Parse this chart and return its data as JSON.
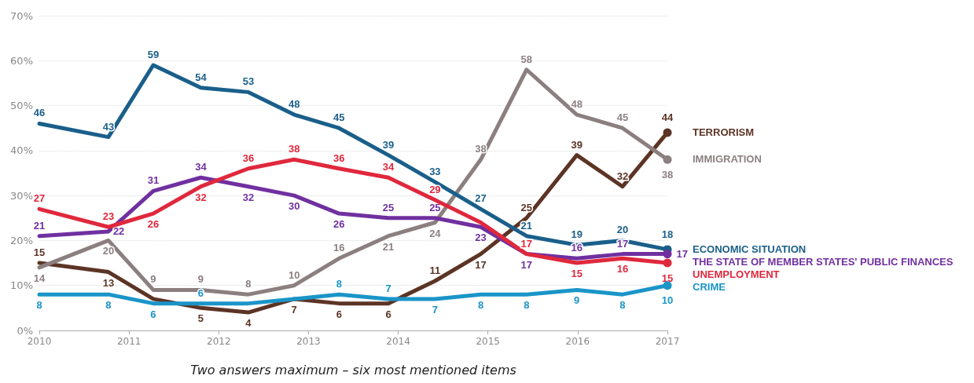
{
  "chart_data": {
    "type": "line",
    "xlabel": "Two answers maximum – six most mentioned items",
    "x": [
      2010,
      2010.77,
      2011.27,
      2011.8,
      2012.33,
      2012.84,
      2013.34,
      2013.89,
      2014.41,
      2014.92,
      2015.43,
      2015.99,
      2016.5,
      2017
    ],
    "xlim": [
      2010,
      2017
    ],
    "xticks": [
      2010,
      2011,
      2012,
      2013,
      2014,
      2015,
      2016,
      2017
    ],
    "ylim": [
      0,
      70
    ],
    "yticks": [
      {
        "value": 0,
        "label": "0%"
      },
      {
        "value": 10,
        "label": "10%"
      },
      {
        "value": 20,
        "label": "20%"
      },
      {
        "value": 30,
        "label": "30%"
      },
      {
        "value": 40,
        "label": "40%"
      },
      {
        "value": 50,
        "label": "50%"
      },
      {
        "value": 60,
        "label": "60%"
      },
      {
        "value": 70,
        "label": "70%"
      }
    ],
    "grid": "y",
    "series": [
      {
        "name": "TERRORISM",
        "color": "#5c3425",
        "values": [
          15,
          13,
          7,
          5,
          4,
          7,
          6,
          6,
          11,
          17,
          25,
          39,
          32,
          44
        ],
        "value_labels": [
          "15",
          "13",
          null,
          "5",
          "4",
          "7",
          "6",
          "6",
          "11",
          "17",
          "25",
          "39",
          "32",
          "44"
        ]
      },
      {
        "name": "IMMIGRATION",
        "color": "#8c7f80",
        "values": [
          14,
          20,
          9,
          9,
          8,
          10,
          16,
          21,
          24,
          38,
          58,
          48,
          45,
          38
        ],
        "value_labels": [
          "14",
          "20",
          "9",
          "9",
          "8",
          "10",
          "16",
          "21",
          "24",
          "38",
          "58",
          "48",
          "45",
          "38"
        ]
      },
      {
        "name": "ECONOMIC SITUATION",
        "color": "#1a5f8a",
        "values": [
          46,
          43,
          59,
          54,
          53,
          48,
          45,
          39,
          33,
          27,
          21,
          19,
          20,
          18
        ],
        "value_labels": [
          "46",
          "43",
          "59",
          "54",
          "53",
          "48",
          "45",
          "39",
          "33",
          "27",
          "21",
          "19",
          "20",
          "18"
        ]
      },
      {
        "name": "THE STATE OF MEMBER STATES' PUBLIC FINANCES",
        "color": "#7030a0",
        "values": [
          21,
          22,
          31,
          34,
          32,
          30,
          26,
          25,
          25,
          23,
          17,
          16,
          17,
          17
        ],
        "value_labels": [
          "21",
          "22",
          "31",
          "34",
          "32",
          "30",
          "26",
          "25",
          "25",
          "23",
          "17",
          "16",
          "17",
          "17"
        ]
      },
      {
        "name": "UNEMPLOYMENT",
        "color": "#e0283c",
        "values": [
          27,
          23,
          26,
          32,
          36,
          38,
          36,
          34,
          29,
          24,
          17,
          15,
          16,
          15
        ],
        "value_labels": [
          "27",
          "23",
          "26",
          "32",
          "36",
          "38",
          "36",
          "34",
          "29",
          null,
          "17",
          "15",
          "16",
          "15"
        ]
      },
      {
        "name": "CRIME",
        "color": "#1a95c8",
        "values": [
          8,
          8,
          6,
          6,
          6,
          7,
          8,
          7,
          7,
          8,
          8,
          9,
          8,
          10
        ],
        "value_labels": [
          "8",
          "8",
          "6",
          "6",
          null,
          null,
          "8",
          "7",
          "7",
          "8",
          "8",
          "9",
          "8",
          "10"
        ]
      }
    ]
  }
}
